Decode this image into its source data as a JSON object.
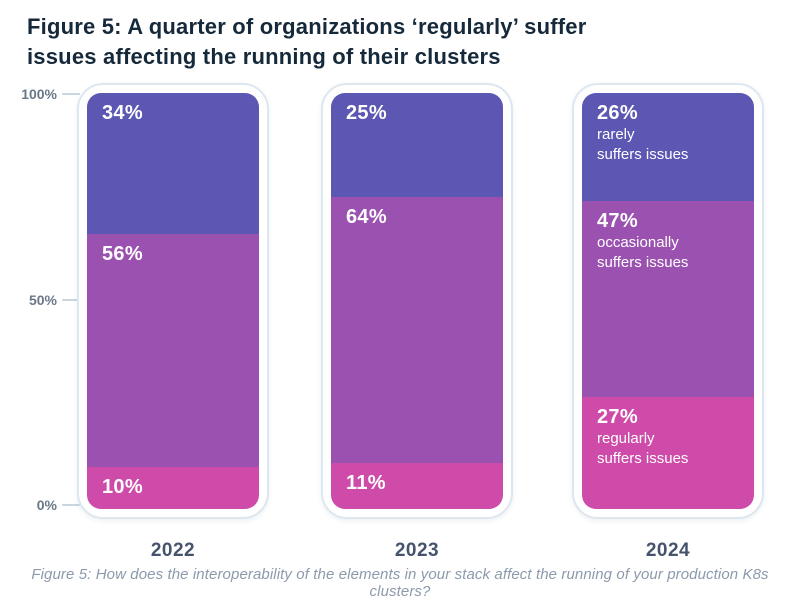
{
  "title": "Figure 5: A quarter of organizations ‘regularly’ suffer issues affecting the running of their clusters",
  "caption": "Figure 5: How does the interoperability of the elements in your stack affect the running of your production K8s clusters?",
  "colors": {
    "title_text": "#15293b",
    "axis_text": "#6b7888",
    "year_text": "#45536c",
    "caption_text": "#8c9aac",
    "bar_container_border": "#dde7f0",
    "bar_container_bg": "#ffffff",
    "tick_dash": "#c9d5df",
    "segment_text": "#ffffff",
    "rarely": "#5b57b2",
    "occasionally": "#9b51b0",
    "regularly": "#ce4ba9"
  },
  "chart_data": {
    "type": "bar",
    "stacked": true,
    "title": "Figure 5: A quarter of organizations ‘regularly’ suffer issues affecting the running of their clusters",
    "xlabel": "",
    "ylabel": "",
    "categories": [
      "2022",
      "2023",
      "2024"
    ],
    "series": [
      {
        "name": "rarely suffers issues",
        "label_lines": [
          "rarely",
          "suffers issues"
        ],
        "color": "#5b57b2",
        "values": [
          34,
          25,
          26
        ]
      },
      {
        "name": "occasionally suffers issues",
        "label_lines": [
          "occasionally",
          "suffers issues"
        ],
        "color": "#9b51b0",
        "values": [
          56,
          64,
          47
        ]
      },
      {
        "name": "regularly suffers issues",
        "label_lines": [
          "regularly",
          "suffers issues"
        ],
        "color": "#ce4ba9",
        "values": [
          10,
          11,
          27
        ]
      }
    ],
    "value_label_format": "percent",
    "series_labels_shown_on_category": "2024",
    "y_ticks": [
      "100%",
      "50%",
      "0%"
    ],
    "ylim": [
      0,
      100
    ],
    "grid": false,
    "legend": "none"
  }
}
